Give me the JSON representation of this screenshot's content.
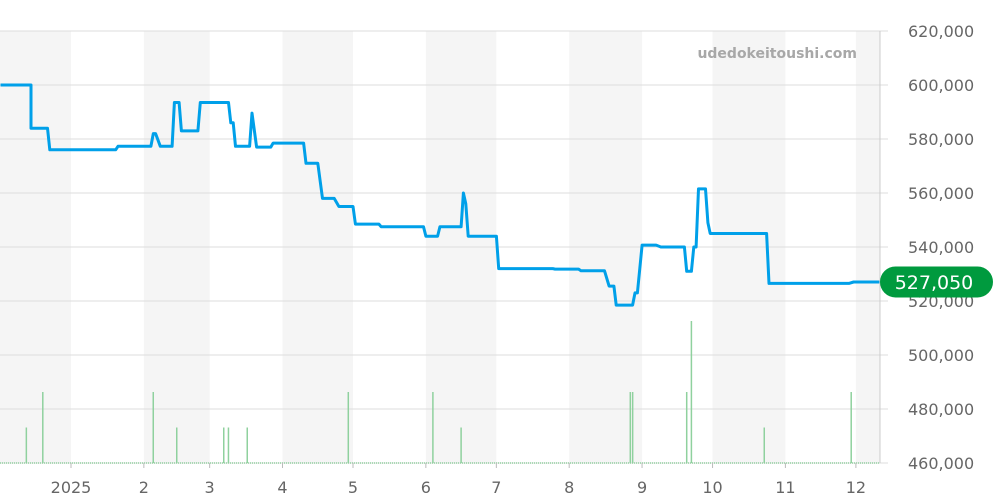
{
  "watermark": "udedokeitoushi.com",
  "chart_data": {
    "type": "line",
    "title": "",
    "xlabel": "",
    "ylabel": "",
    "ylim": [
      460000,
      620000
    ],
    "yticks": [
      460000,
      480000,
      500000,
      520000,
      540000,
      560000,
      580000,
      600000,
      620000
    ],
    "ytick_labels": [
      "460,000",
      "480,000",
      "500,000",
      "520,000",
      "540,000",
      "560,000",
      "580,000",
      "600,000",
      "620,000"
    ],
    "xlim": [
      "2024-12-02",
      "2025-12-12"
    ],
    "xticks": [
      {
        "date": "2025-01-01",
        "label": "2025"
      },
      {
        "date": "2025-02-01",
        "label": "2"
      },
      {
        "date": "2025-03-01",
        "label": "3"
      },
      {
        "date": "2025-04-01",
        "label": "4"
      },
      {
        "date": "2025-05-01",
        "label": "5"
      },
      {
        "date": "2025-06-01",
        "label": "6"
      },
      {
        "date": "2025-07-01",
        "label": "7"
      },
      {
        "date": "2025-08-01",
        "label": "8"
      },
      {
        "date": "2025-09-01",
        "label": "9"
      },
      {
        "date": "2025-10-01",
        "label": "10"
      },
      {
        "date": "2025-11-01",
        "label": "11"
      },
      {
        "date": "2025-12-01",
        "label": "12"
      }
    ],
    "grid": true,
    "alternating_month_bands": true,
    "current_value": 527050,
    "current_value_label": "527,050",
    "colors": {
      "line": "#00a0e9",
      "volume": "#8fd19e",
      "badge": "#009a3e",
      "band": "#f5f5f5",
      "grid": "#dddddd"
    },
    "price_series": [
      [
        "2024-12-02",
        600000
      ],
      [
        "2024-12-15",
        600000
      ],
      [
        "2024-12-15",
        584000
      ],
      [
        "2024-12-22",
        584000
      ],
      [
        "2024-12-23",
        576000
      ],
      [
        "2025-01-20",
        576000
      ],
      [
        "2025-01-21",
        577300
      ],
      [
        "2025-02-04",
        577300
      ],
      [
        "2025-02-05",
        582000
      ],
      [
        "2025-02-06",
        582000
      ],
      [
        "2025-02-08",
        577300
      ],
      [
        "2025-02-13",
        577300
      ],
      [
        "2025-02-14",
        593500
      ],
      [
        "2025-02-16",
        593500
      ],
      [
        "2025-02-17",
        583000
      ],
      [
        "2025-02-24",
        583000
      ],
      [
        "2025-02-25",
        593500
      ],
      [
        "2025-03-09",
        593500
      ],
      [
        "2025-03-10",
        586000
      ],
      [
        "2025-03-11",
        586000
      ],
      [
        "2025-03-12",
        577300
      ],
      [
        "2025-03-18",
        577300
      ],
      [
        "2025-03-19",
        589600
      ],
      [
        "2025-03-21",
        577000
      ],
      [
        "2025-03-27",
        577000
      ],
      [
        "2025-03-28",
        578500
      ],
      [
        "2025-04-10",
        578500
      ],
      [
        "2025-04-11",
        571000
      ],
      [
        "2025-04-16",
        571000
      ],
      [
        "2025-04-18",
        558000
      ],
      [
        "2025-04-23",
        558000
      ],
      [
        "2025-04-25",
        555000
      ],
      [
        "2025-05-01",
        555000
      ],
      [
        "2025-05-02",
        548500
      ],
      [
        "2025-05-12",
        548500
      ],
      [
        "2025-05-13",
        547500
      ],
      [
        "2025-05-31",
        547500
      ],
      [
        "2025-06-01",
        544000
      ],
      [
        "2025-06-06",
        544000
      ],
      [
        "2025-06-07",
        547500
      ],
      [
        "2025-06-16",
        547500
      ],
      [
        "2025-06-17",
        560000
      ],
      [
        "2025-06-18",
        556000
      ],
      [
        "2025-06-19",
        544000
      ],
      [
        "2025-07-01",
        544000
      ],
      [
        "2025-07-02",
        532000
      ],
      [
        "2025-07-25",
        532000
      ],
      [
        "2025-07-26",
        531800
      ],
      [
        "2025-08-05",
        531800
      ],
      [
        "2025-08-06",
        531200
      ],
      [
        "2025-08-16",
        531200
      ],
      [
        "2025-08-18",
        525500
      ],
      [
        "2025-08-20",
        525500
      ],
      [
        "2025-08-21",
        518500
      ],
      [
        "2025-08-28",
        518500
      ],
      [
        "2025-08-29",
        523000
      ],
      [
        "2025-08-30",
        523000
      ],
      [
        "2025-09-01",
        540700
      ],
      [
        "2025-09-07",
        540700
      ],
      [
        "2025-09-09",
        540000
      ],
      [
        "2025-09-19",
        540000
      ],
      [
        "2025-09-20",
        531000
      ],
      [
        "2025-09-22",
        531000
      ],
      [
        "2025-09-23",
        540000
      ],
      [
        "2025-09-24",
        540000
      ],
      [
        "2025-09-25",
        561500
      ],
      [
        "2025-09-28",
        561500
      ],
      [
        "2025-09-29",
        549000
      ],
      [
        "2025-09-30",
        545000
      ],
      [
        "2025-10-24",
        545000
      ],
      [
        "2025-10-25",
        526500
      ],
      [
        "2025-11-28",
        526500
      ],
      [
        "2025-11-30",
        527050
      ],
      [
        "2025-12-11",
        527050
      ]
    ],
    "volume_series": [
      [
        "2024-12-13",
        1
      ],
      [
        "2024-12-20",
        2
      ],
      [
        "2025-02-05",
        2
      ],
      [
        "2025-02-15",
        1
      ],
      [
        "2025-03-07",
        1
      ],
      [
        "2025-03-09",
        1
      ],
      [
        "2025-03-17",
        1
      ],
      [
        "2025-04-29",
        2
      ],
      [
        "2025-06-04",
        2
      ],
      [
        "2025-06-16",
        1
      ],
      [
        "2025-08-27",
        2
      ],
      [
        "2025-08-28",
        2
      ],
      [
        "2025-09-20",
        2
      ],
      [
        "2025-09-22",
        4
      ],
      [
        "2025-10-23",
        1
      ],
      [
        "2025-11-29",
        2
      ]
    ]
  }
}
